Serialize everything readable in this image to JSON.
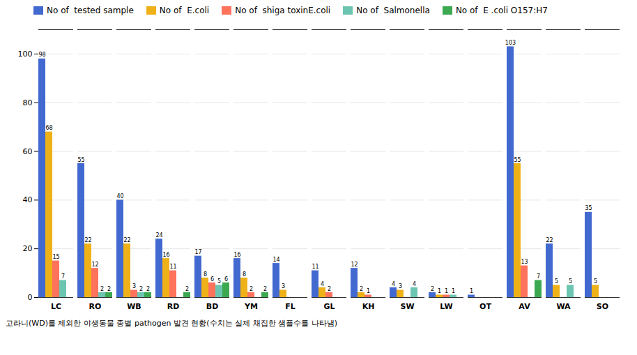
{
  "chart_data": {
    "type": "bar",
    "subtitle": "고라니(WD)를 제외한 야생동물 종별 pathogen 발견 현황(수치는 실제 채집한 샘플수를 나타냄)",
    "categories": [
      "LC",
      "RO",
      "WB",
      "RD",
      "BD",
      "YM",
      "FL",
      "GL",
      "KH",
      "SW",
      "LW",
      "OT",
      "AV",
      "WA",
      "SO"
    ],
    "series": [
      {
        "name": "No of  tested sample",
        "values": [
          98,
          55,
          40,
          24,
          17,
          16,
          14,
          11,
          12,
          4,
          2,
          1,
          103,
          22,
          35
        ],
        "value_labels": [
          "98",
          "55",
          "40",
          "24",
          "17",
          "16",
          "14",
          "11",
          "12",
          "4",
          "2",
          "1",
          "103",
          "22",
          "35"
        ]
      },
      {
        "name": "No of  E.coli",
        "values": [
          68,
          22,
          22,
          16,
          8,
          8,
          3,
          4,
          2,
          3,
          1,
          0,
          55,
          5,
          5
        ],
        "value_labels": [
          "68",
          "22",
          "22",
          "16",
          "8",
          "8",
          "3",
          "4",
          "2",
          "3",
          "1",
          null,
          "55",
          "5",
          "5"
        ]
      },
      {
        "name": "No of  shiga toxinE.coli",
        "values": [
          15,
          12,
          3,
          11,
          6,
          2,
          0,
          2,
          1,
          0,
          1,
          0,
          13,
          0,
          0
        ],
        "value_labels": [
          "15",
          "12",
          "3",
          "11",
          "6",
          "2",
          null,
          "2",
          "1",
          null,
          "1",
          null,
          "13",
          null,
          null
        ]
      },
      {
        "name": "No of  Salmonella",
        "values": [
          7,
          2,
          2,
          0,
          5,
          0,
          0,
          0,
          0,
          4,
          1,
          0,
          0,
          5,
          0
        ],
        "value_labels": [
          "7",
          "2",
          "2",
          null,
          "5",
          null,
          null,
          null,
          null,
          "4",
          "1",
          null,
          null,
          "5",
          null
        ]
      },
      {
        "name": "No of  E .coli O157:H7",
        "values": [
          0,
          2,
          2,
          2,
          6,
          2,
          0,
          0,
          0,
          0,
          0,
          0,
          7,
          0,
          0
        ],
        "value_labels": [
          null,
          "2",
          "2",
          "2",
          "6",
          "2",
          null,
          null,
          null,
          null,
          null,
          null,
          "7",
          null,
          null
        ]
      }
    ],
    "ylim": [
      0,
      110
    ],
    "yticks": [
      0,
      20,
      40,
      60,
      80,
      100
    ],
    "grid": true,
    "legend": "top",
    "data_labels": true
  }
}
